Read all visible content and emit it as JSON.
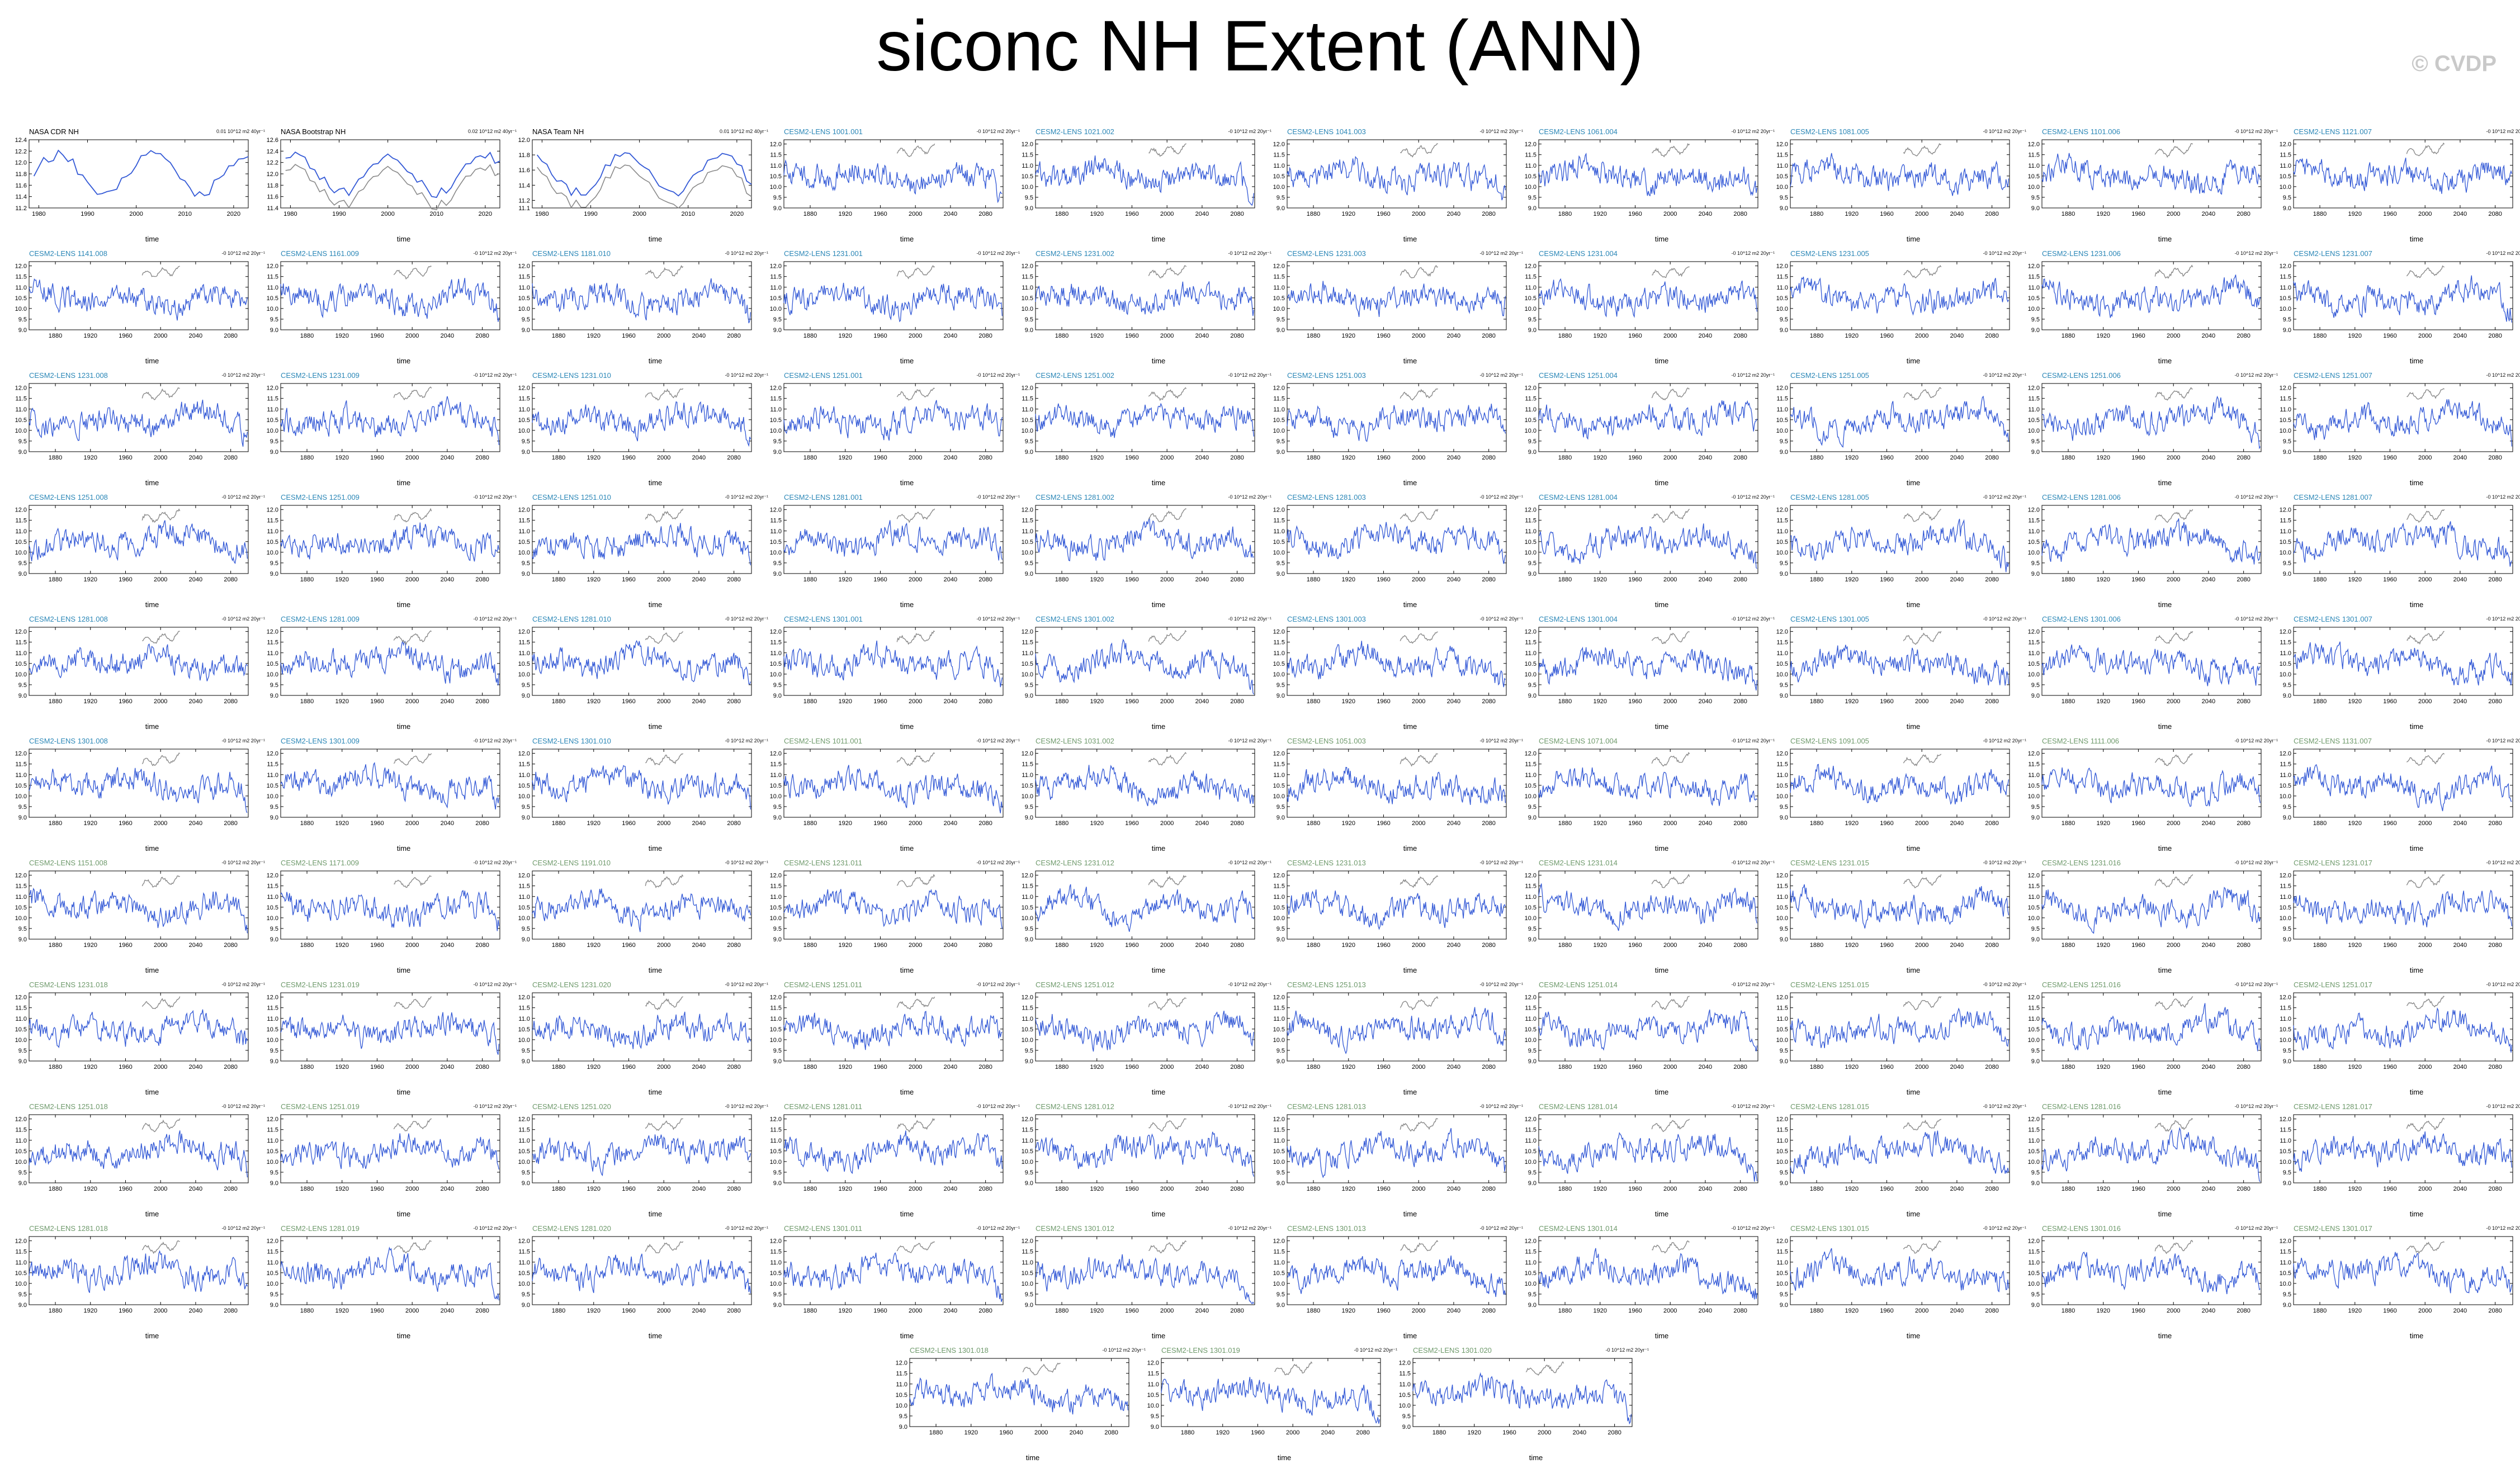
{
  "title": "siconc NH Extent (ANN)",
  "watermark": "© CVDP",
  "colors": {
    "obs_title": "#000000",
    "lens_a_title": "#2b87b7",
    "lens_b_title": "#6f9a6c",
    "series": "#3359d6",
    "obs_overlay": "#8a8a8a"
  },
  "chart_data": [
    {
      "type": "line",
      "title": "NASA CDR NH",
      "units": "0.01 10^12 m2 40yr⁻¹",
      "xlabel": "time",
      "xlim": [
        1978,
        2023
      ],
      "xticks": [
        "1980",
        "1990",
        "2000",
        "2010",
        "2020"
      ],
      "ylim": [
        11.2,
        12.4
      ],
      "yticks": [
        "12.4",
        "12.2",
        "12.0",
        "11.8",
        "11.6",
        "11.4",
        "11.2"
      ],
      "group": "obs"
    },
    {
      "type": "line",
      "title": "NASA Bootstrap NH",
      "units": "0.02 10^12 m2 40yr⁻¹",
      "xlabel": "time",
      "xlim": [
        1978,
        2023
      ],
      "xticks": [
        "1980",
        "1990",
        "2000",
        "2010",
        "2020"
      ],
      "ylim": [
        11.4,
        12.6
      ],
      "yticks": [
        "12.6",
        "12.4",
        "12.2",
        "12.0",
        "11.8",
        "11.6",
        "11.4"
      ],
      "group": "obs"
    },
    {
      "type": "line",
      "title": "NASA Team NH",
      "units": "0.01 10^12 m2 40yr⁻¹",
      "xlabel": "time",
      "xlim": [
        1978,
        2023
      ],
      "xticks": [
        "1980",
        "1990",
        "2000",
        "2010",
        "2020"
      ],
      "ylim": [
        11.1,
        12.0
      ],
      "yticks": [
        "12.0",
        "11.8",
        "11.6",
        "11.4",
        "11.2",
        "11.1"
      ],
      "group": "obs"
    },
    {
      "title": "CESM2-LENS 1001.001",
      "group": "a"
    },
    {
      "title": "CESM2-LENS 1021.002",
      "group": "a"
    },
    {
      "title": "CESM2-LENS 1041.003",
      "group": "a"
    },
    {
      "title": "CESM2-LENS 1061.004",
      "group": "a"
    },
    {
      "title": "CESM2-LENS 1081.005",
      "group": "a"
    },
    {
      "title": "CESM2-LENS 1101.006",
      "group": "a"
    },
    {
      "title": "CESM2-LENS 1121.007",
      "group": "a"
    },
    {
      "title": "CESM2-LENS 1141.008",
      "group": "a"
    },
    {
      "title": "CESM2-LENS 1161.009",
      "group": "a"
    },
    {
      "title": "CESM2-LENS 1181.010",
      "group": "a"
    },
    {
      "title": "CESM2-LENS 1231.001",
      "group": "a"
    },
    {
      "title": "CESM2-LENS 1231.002",
      "group": "a"
    },
    {
      "title": "CESM2-LENS 1231.003",
      "group": "a"
    },
    {
      "title": "CESM2-LENS 1231.004",
      "group": "a"
    },
    {
      "title": "CESM2-LENS 1231.005",
      "group": "a"
    },
    {
      "title": "CESM2-LENS 1231.006",
      "group": "a"
    },
    {
      "title": "CESM2-LENS 1231.007",
      "group": "a"
    },
    {
      "title": "CESM2-LENS 1231.008",
      "group": "a"
    },
    {
      "title": "CESM2-LENS 1231.009",
      "group": "a"
    },
    {
      "title": "CESM2-LENS 1231.010",
      "group": "a"
    },
    {
      "title": "CESM2-LENS 1251.001",
      "group": "a"
    },
    {
      "title": "CESM2-LENS 1251.002",
      "group": "a"
    },
    {
      "title": "CESM2-LENS 1251.003",
      "group": "a"
    },
    {
      "title": "CESM2-LENS 1251.004",
      "group": "a"
    },
    {
      "title": "CESM2-LENS 1251.005",
      "group": "a"
    },
    {
      "title": "CESM2-LENS 1251.006",
      "group": "a"
    },
    {
      "title": "CESM2-LENS 1251.007",
      "group": "a"
    },
    {
      "title": "CESM2-LENS 1251.008",
      "group": "a"
    },
    {
      "title": "CESM2-LENS 1251.009",
      "group": "a"
    },
    {
      "title": "CESM2-LENS 1251.010",
      "group": "a"
    },
    {
      "title": "CESM2-LENS 1281.001",
      "group": "a"
    },
    {
      "title": "CESM2-LENS 1281.002",
      "group": "a"
    },
    {
      "title": "CESM2-LENS 1281.003",
      "group": "a"
    },
    {
      "title": "CESM2-LENS 1281.004",
      "group": "a"
    },
    {
      "title": "CESM2-LENS 1281.005",
      "group": "a"
    },
    {
      "title": "CESM2-LENS 1281.006",
      "group": "a"
    },
    {
      "title": "CESM2-LENS 1281.007",
      "group": "a"
    },
    {
      "title": "CESM2-LENS 1281.008",
      "group": "a"
    },
    {
      "title": "CESM2-LENS 1281.009",
      "group": "a"
    },
    {
      "title": "CESM2-LENS 1281.010",
      "group": "a"
    },
    {
      "title": "CESM2-LENS 1301.001",
      "group": "a"
    },
    {
      "title": "CESM2-LENS 1301.002",
      "group": "a"
    },
    {
      "title": "CESM2-LENS 1301.003",
      "group": "a"
    },
    {
      "title": "CESM2-LENS 1301.004",
      "group": "a"
    },
    {
      "title": "CESM2-LENS 1301.005",
      "group": "a"
    },
    {
      "title": "CESM2-LENS 1301.006",
      "group": "a"
    },
    {
      "title": "CESM2-LENS 1301.007",
      "group": "a"
    },
    {
      "title": "CESM2-LENS 1301.008",
      "group": "a"
    },
    {
      "title": "CESM2-LENS 1301.009",
      "group": "a"
    },
    {
      "title": "CESM2-LENS 1301.010",
      "group": "a"
    },
    {
      "title": "CESM2-LENS 1011.001",
      "group": "b"
    },
    {
      "title": "CESM2-LENS 1031.002",
      "group": "b"
    },
    {
      "title": "CESM2-LENS 1051.003",
      "group": "b"
    },
    {
      "title": "CESM2-LENS 1071.004",
      "group": "b"
    },
    {
      "title": "CESM2-LENS 1091.005",
      "group": "b"
    },
    {
      "title": "CESM2-LENS 1111.006",
      "group": "b"
    },
    {
      "title": "CESM2-LENS 1131.007",
      "group": "b"
    },
    {
      "title": "CESM2-LENS 1151.008",
      "group": "b"
    },
    {
      "title": "CESM2-LENS 1171.009",
      "group": "b"
    },
    {
      "title": "CESM2-LENS 1191.010",
      "group": "b"
    },
    {
      "title": "CESM2-LENS 1231.011",
      "group": "b"
    },
    {
      "title": "CESM2-LENS 1231.012",
      "group": "b"
    },
    {
      "title": "CESM2-LENS 1231.013",
      "group": "b"
    },
    {
      "title": "CESM2-LENS 1231.014",
      "group": "b"
    },
    {
      "title": "CESM2-LENS 1231.015",
      "group": "b"
    },
    {
      "title": "CESM2-LENS 1231.016",
      "group": "b"
    },
    {
      "title": "CESM2-LENS 1231.017",
      "group": "b"
    },
    {
      "title": "CESM2-LENS 1231.018",
      "group": "b"
    },
    {
      "title": "CESM2-LENS 1231.019",
      "group": "b"
    },
    {
      "title": "CESM2-LENS 1231.020",
      "group": "b"
    },
    {
      "title": "CESM2-LENS 1251.011",
      "group": "b"
    },
    {
      "title": "CESM2-LENS 1251.012",
      "group": "b"
    },
    {
      "title": "CESM2-LENS 1251.013",
      "group": "b"
    },
    {
      "title": "CESM2-LENS 1251.014",
      "group": "b"
    },
    {
      "title": "CESM2-LENS 1251.015",
      "group": "b"
    },
    {
      "title": "CESM2-LENS 1251.016",
      "group": "b"
    },
    {
      "title": "CESM2-LENS 1251.017",
      "group": "b"
    },
    {
      "title": "CESM2-LENS 1251.018",
      "group": "b"
    },
    {
      "title": "CESM2-LENS 1251.019",
      "group": "b"
    },
    {
      "title": "CESM2-LENS 1251.020",
      "group": "b"
    },
    {
      "title": "CESM2-LENS 1281.011",
      "group": "b"
    },
    {
      "title": "CESM2-LENS 1281.012",
      "group": "b"
    },
    {
      "title": "CESM2-LENS 1281.013",
      "group": "b"
    },
    {
      "title": "CESM2-LENS 1281.014",
      "group": "b"
    },
    {
      "title": "CESM2-LENS 1281.015",
      "group": "b"
    },
    {
      "title": "CESM2-LENS 1281.016",
      "group": "b"
    },
    {
      "title": "CESM2-LENS 1281.017",
      "group": "b"
    },
    {
      "title": "CESM2-LENS 1281.018",
      "group": "b"
    },
    {
      "title": "CESM2-LENS 1281.019",
      "group": "b"
    },
    {
      "title": "CESM2-LENS 1281.020",
      "group": "b"
    },
    {
      "title": "CESM2-LENS 1301.011",
      "group": "b"
    },
    {
      "title": "CESM2-LENS 1301.012",
      "group": "b"
    },
    {
      "title": "CESM2-LENS 1301.013",
      "group": "b"
    },
    {
      "title": "CESM2-LENS 1301.014",
      "group": "b"
    },
    {
      "title": "CESM2-LENS 1301.015",
      "group": "b"
    },
    {
      "title": "CESM2-LENS 1301.016",
      "group": "b"
    },
    {
      "title": "CESM2-LENS 1301.017",
      "group": "b"
    },
    {
      "title": "CESM2-LENS 1301.018",
      "group": "b"
    },
    {
      "title": "CESM2-LENS 1301.019",
      "group": "b"
    },
    {
      "title": "CESM2-LENS 1301.020",
      "group": "b"
    }
  ],
  "lens_defaults": {
    "type": "line",
    "units": "-0 10^12 m2 20yr⁻¹",
    "xlabel": "time",
    "xlim": [
      1850,
      2100
    ],
    "xticks": [
      "1880",
      "1920",
      "1960",
      "2000",
      "2040",
      "2080"
    ],
    "ylim": [
      9.0,
      12.2
    ],
    "yticks": [
      "12.0",
      "11.5",
      "11.0",
      "10.5",
      "10.0",
      "9.5",
      "9.0"
    ],
    "obs_overlay_range": [
      1979,
      2022
    ]
  }
}
